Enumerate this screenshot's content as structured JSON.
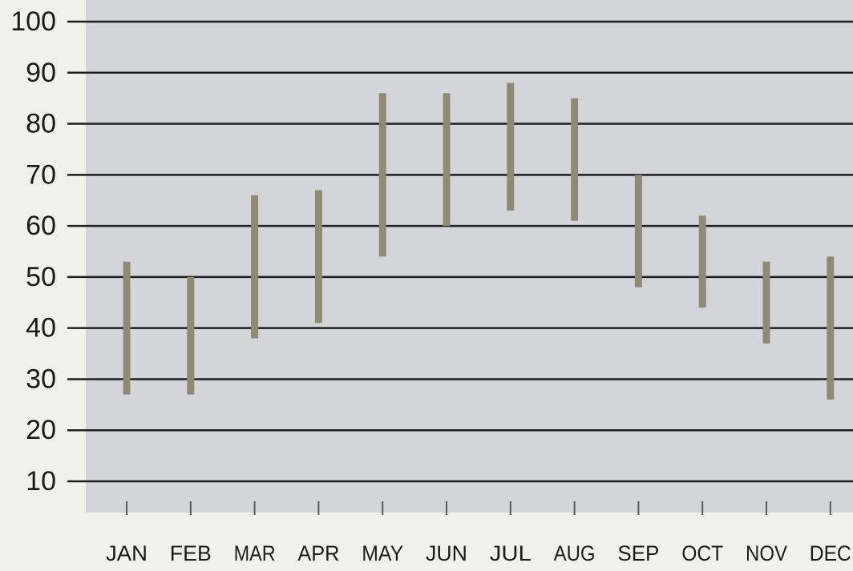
{
  "chart_data": {
    "type": "range-bar",
    "title": "",
    "xlabel": "",
    "ylabel": "",
    "categories": [
      "JAN",
      "FEB",
      "MAR",
      "APR",
      "MAY",
      "JUN",
      "JUL",
      "AUG",
      "SEP",
      "OCT",
      "NOV",
      "DEC"
    ],
    "series": [
      {
        "low": [
          27,
          27,
          38,
          41,
          54,
          60,
          63,
          61,
          48,
          44,
          37,
          26
        ],
        "high": [
          53,
          50,
          66,
          67,
          86,
          86,
          88,
          85,
          70,
          62,
          53,
          54
        ]
      }
    ],
    "y_ticks": [
      10,
      20,
      30,
      40,
      50,
      60,
      70,
      80,
      90,
      100
    ],
    "ylim": [
      5,
      100
    ],
    "grid": true,
    "colors": {
      "page_background": "#f1f1ec",
      "plot_background": "#d3d5d8",
      "gridline": "#1e1e1e",
      "bar": "#8e8a73",
      "text": "#1a1a1a"
    }
  }
}
